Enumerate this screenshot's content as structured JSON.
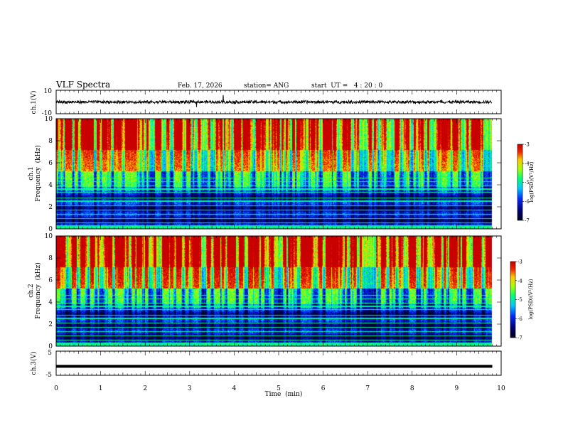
{
  "header": {
    "title": "VLF Spectra",
    "date": "Feb. 17, 2026",
    "station": "station= ANG",
    "start_ut": "start  UT =   4 : 20 : 0"
  },
  "chart_data": [
    {
      "id": "ch1_waveform",
      "type": "line",
      "ylabel": "ch.1(V)",
      "ylim": [
        -10,
        10
      ],
      "yticks": [
        "10",
        "-10"
      ],
      "xlim": [
        0,
        10
      ],
      "description_values": {
        "baseline": 0,
        "noise_amplitude": 1.2,
        "data_end_min": 9.8
      }
    },
    {
      "id": "ch1_spectrogram",
      "type": "heatmap",
      "ylabel": "ch.1\nFrequency  (kHz)",
      "ylabel_line1": "ch.1",
      "ylabel_line2": "Frequency  (kHz)",
      "ylim": [
        0,
        10
      ],
      "yticks": [
        "0",
        "2",
        "4",
        "6",
        "8",
        "10"
      ],
      "xlim": [
        0,
        10
      ],
      "data_end_min": 9.8,
      "colorbar": {
        "label": "log(PSD)(V²/Hz)",
        "range": [
          -7,
          -3
        ],
        "ticks": [
          "-3",
          "-4",
          "-5",
          "-6",
          "-7"
        ]
      }
    },
    {
      "id": "ch2_spectrogram",
      "type": "heatmap",
      "ylabel_line1": "ch.2",
      "ylabel_line2": "Frequency  (kHz)",
      "ylim": [
        0,
        10
      ],
      "yticks": [
        "0",
        "2",
        "4",
        "6",
        "8",
        "10"
      ],
      "xlim": [
        0,
        10
      ],
      "data_end_min": 9.8,
      "colorbar": {
        "label": "log(PSD)(V²/Hz)",
        "range": [
          -7,
          -3
        ],
        "ticks": [
          "-3",
          "-4",
          "-5",
          "-6",
          "-7"
        ]
      }
    },
    {
      "id": "ch3_waveform",
      "type": "line",
      "ylabel": "ch.3(V)",
      "ylim": [
        -5,
        5
      ],
      "yticks": [
        "5",
        "-5"
      ],
      "xlim": [
        0,
        10
      ],
      "description_values": {
        "baseline": -1.3,
        "data_end_min": 9.8
      }
    }
  ],
  "xaxis": {
    "label": "Time  (min)",
    "ticks": [
      "0",
      "1",
      "2",
      "3",
      "4",
      "5",
      "6",
      "7",
      "8",
      "9",
      "10"
    ]
  },
  "colors": {
    "low": "#000080",
    "mid": "#00ff60",
    "high": "#d00000"
  }
}
